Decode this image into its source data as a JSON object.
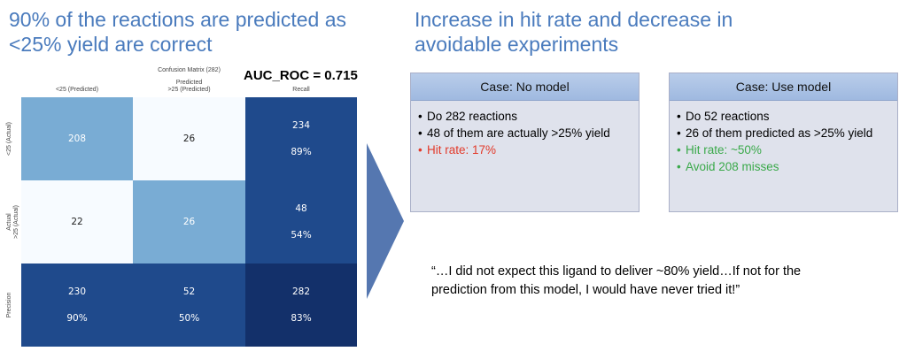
{
  "left_title": "90% of the reactions are predicted as <25% yield are correct",
  "right_title": "Increase in hit rate and decrease in avoidable experiments",
  "matrix": {
    "title": "Confusion Matrix (282)",
    "auc": "AUC_ROC = 0.715",
    "col_headers": [
      "<25 (Predicted)",
      "Predicted\n>25 (Predicted)",
      "Recall"
    ],
    "row_headers": [
      "<25 (Actual)",
      "Actual\n>25 (Actual)",
      "Precision"
    ],
    "cells": [
      [
        {
          "v": "208",
          "p": ""
        },
        {
          "v": "26",
          "p": ""
        },
        {
          "v": "234",
          "p": "89%"
        }
      ],
      [
        {
          "v": "22",
          "p": ""
        },
        {
          "v": "26",
          "p": ""
        },
        {
          "v": "48",
          "p": "54%"
        }
      ],
      [
        {
          "v": "230",
          "p": "90%"
        },
        {
          "v": "52",
          "p": "50%"
        },
        {
          "v": "282",
          "p": "83%"
        }
      ]
    ],
    "colors": [
      [
        "#79acd4",
        "#f7fbff",
        "#1f4a8c"
      ],
      [
        "#f7fbff",
        "#79acd4",
        "#1f4a8c"
      ],
      [
        "#1f4a8c",
        "#1f4a8c",
        "#13306a"
      ]
    ]
  },
  "case_no_model": {
    "header": "Case: No model",
    "items": [
      "Do 282 reactions",
      "48 of them are actually >25% yield",
      "Hit rate: 17%"
    ]
  },
  "case_use_model": {
    "header": "Case: Use model",
    "items": [
      "Do 52 reactions",
      "26 of them predicted as >25% yield",
      "Hit rate: ~50%",
      "Avoid 208 misses"
    ]
  },
  "quote": "“…I did not expect this ligand to deliver ~80% yield…If not for the prediction from this model, I would have never tried it!”"
}
